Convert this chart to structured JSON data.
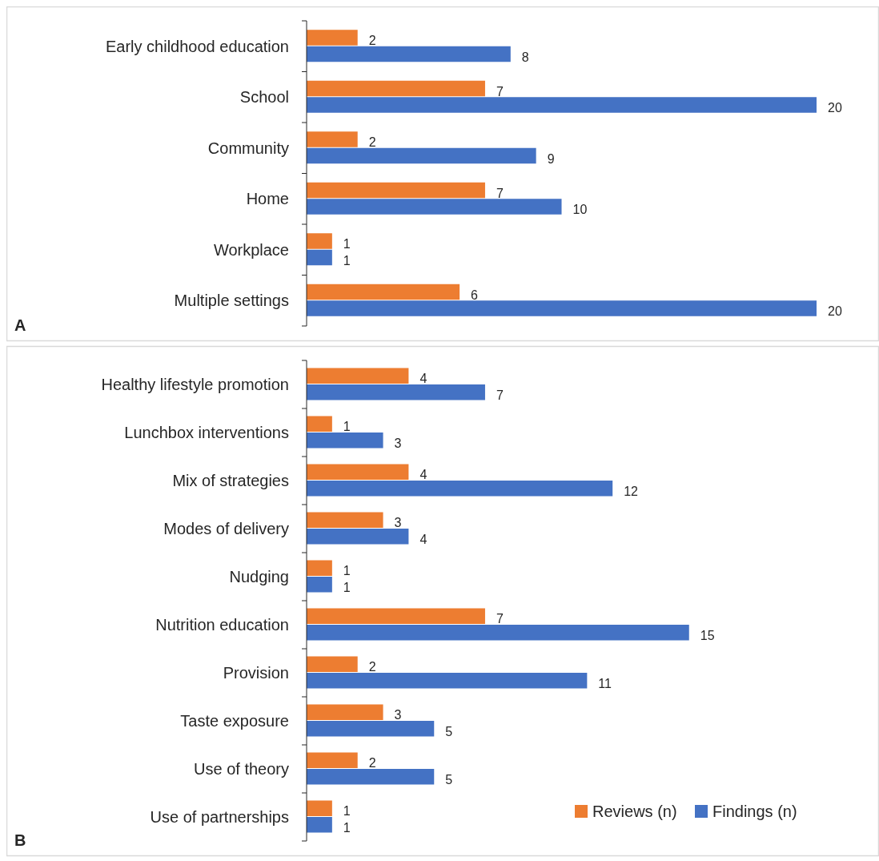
{
  "chart_data": [
    {
      "type": "bar",
      "orientation": "horizontal",
      "categories": [
        "Early childhood education",
        "School",
        "Community",
        "Home",
        "Workplace",
        "Multiple settings"
      ],
      "series": [
        {
          "color": "#ed7d31",
          "values": [
            2,
            7,
            2,
            7,
            1,
            6
          ]
        },
        {
          "color": "#4472c4",
          "values": [
            8,
            20,
            9,
            10,
            1,
            20
          ]
        }
      ],
      "data_labels": true,
      "legend": false,
      "annotations": [
        "A"
      ]
    },
    {
      "type": "bar",
      "orientation": "horizontal",
      "categories": [
        "Healthy lifestyle promotion",
        "Lunchbox interventions",
        "Mix of strategies",
        "Modes of delivery",
        "Nudging",
        "Nutrition education",
        "Provision",
        "Taste exposure",
        "Use of theory",
        "Use of partnerships"
      ],
      "series": [
        {
          "name": "Reviews (n)",
          "color": "#ed7d31",
          "values": [
            4,
            1,
            4,
            3,
            1,
            7,
            2,
            3,
            2,
            1
          ]
        },
        {
          "name": "Findings (n)",
          "color": "#4472c4",
          "values": [
            7,
            3,
            12,
            4,
            1,
            15,
            11,
            5,
            5,
            1
          ]
        }
      ],
      "data_labels": true,
      "legend": "bottom right",
      "annotations": [
        "B"
      ]
    }
  ]
}
